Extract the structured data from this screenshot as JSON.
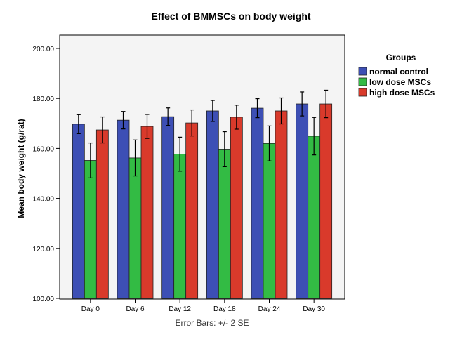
{
  "chart_data": {
    "type": "bar",
    "title": "Effect of BMMSCs on body weight",
    "xlabel": "",
    "ylabel": "Mean body weight (g/rat)",
    "footnote": "Error Bars: +/- 2 SE",
    "ylim": [
      100,
      200
    ],
    "yticks": [
      "100.00",
      "120.00",
      "140.00",
      "160.00",
      "180.00",
      "200.00"
    ],
    "ytick_values": [
      100,
      120,
      140,
      160,
      180,
      200
    ],
    "categories": [
      "Day 0",
      "Day 6",
      "Day 12",
      "Day 18",
      "Day 24",
      "Day 30"
    ],
    "legend": {
      "title": "Groups",
      "position": "right"
    },
    "grid": false,
    "series": [
      {
        "name": "normal control",
        "color": "#3d4fb5",
        "values": [
          169.7,
          171.3,
          172.7,
          175.0,
          176.1,
          177.8
        ],
        "errors": [
          3.8,
          3.5,
          3.5,
          4.2,
          3.8,
          4.8
        ]
      },
      {
        "name": "low dose MSCs",
        "color": "#33bb44",
        "values": [
          155.2,
          156.2,
          157.7,
          159.7,
          162.0,
          164.9
        ],
        "errors": [
          7.0,
          7.2,
          6.8,
          7.0,
          7.0,
          7.5
        ]
      },
      {
        "name": "high dose MSCs",
        "color": "#d93a2b",
        "values": [
          167.4,
          168.8,
          170.2,
          172.5,
          175.0,
          177.8
        ],
        "errors": [
          5.2,
          4.8,
          5.2,
          4.8,
          5.2,
          5.5
        ]
      }
    ]
  }
}
